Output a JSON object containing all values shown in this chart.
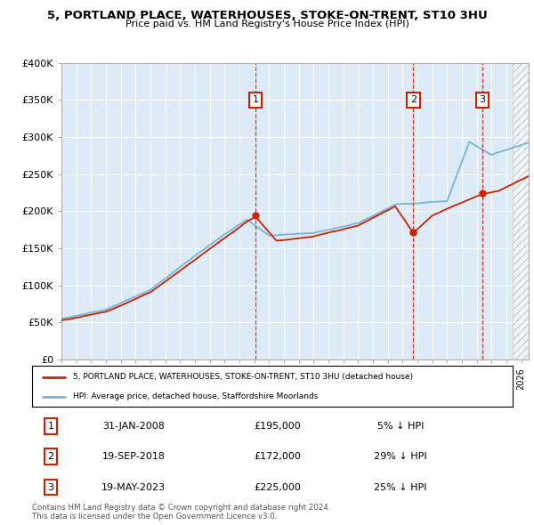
{
  "title": "5, PORTLAND PLACE, WATERHOUSES, STOKE-ON-TRENT, ST10 3HU",
  "subtitle": "Price paid vs. HM Land Registry's House Price Index (HPI)",
  "ylabel_ticks": [
    "£0",
    "£50K",
    "£100K",
    "£150K",
    "£200K",
    "£250K",
    "£300K",
    "£350K",
    "£400K"
  ],
  "ytick_vals": [
    0,
    50000,
    100000,
    150000,
    200000,
    250000,
    300000,
    350000,
    400000
  ],
  "ylim": [
    0,
    400000
  ],
  "xlim_start": 1995.0,
  "xlim_end": 2026.5,
  "hpi_color": "#7ab3d9",
  "price_color": "#cc2200",
  "bg_color": "#ddeaf7",
  "transactions": [
    {
      "date": 2008.08,
      "price": 195000,
      "label": "1"
    },
    {
      "date": 2018.72,
      "price": 172000,
      "label": "2"
    },
    {
      "date": 2023.38,
      "price": 225000,
      "label": "3"
    }
  ],
  "legend_price_label": "5, PORTLAND PLACE, WATERHOUSES, STOKE-ON-TRENT, ST10 3HU (detached house)",
  "legend_hpi_label": "HPI: Average price, detached house, Staffordshire Moorlands",
  "table_rows": [
    {
      "num": "1",
      "date": "31-JAN-2008",
      "price": "£195,000",
      "pct": "5% ↓ HPI"
    },
    {
      "num": "2",
      "date": "19-SEP-2018",
      "price": "£172,000",
      "pct": "29% ↓ HPI"
    },
    {
      "num": "3",
      "date": "19-MAY-2023",
      "price": "£225,000",
      "pct": "25% ↓ HPI"
    }
  ],
  "footnote": "Contains HM Land Registry data © Crown copyright and database right 2024.\nThis data is licensed under the Open Government Licence v3.0."
}
